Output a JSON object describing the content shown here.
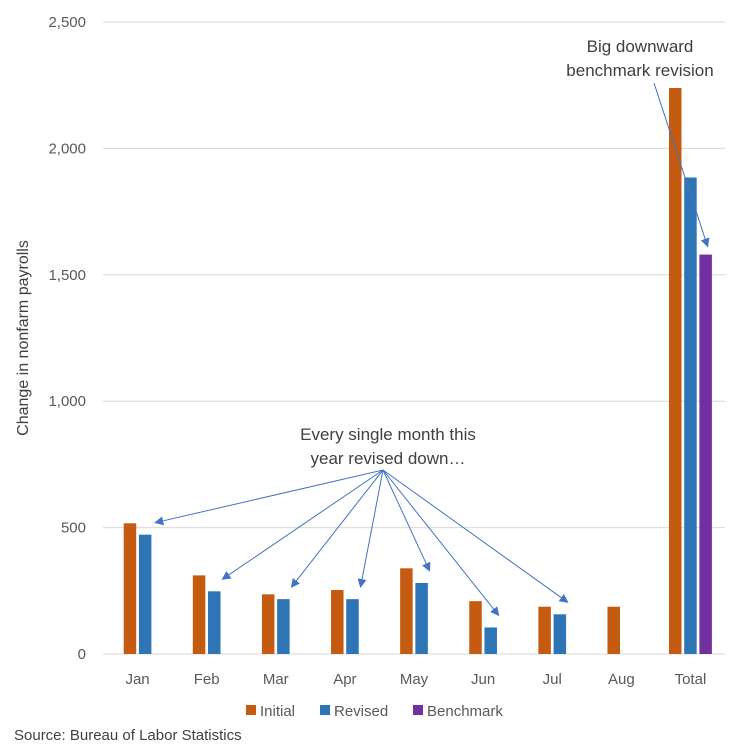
{
  "chart_data": {
    "type": "bar",
    "ylabel": "Change in nonfarm payrolls",
    "categories": [
      "Jan",
      "Feb",
      "Mar",
      "Apr",
      "May",
      "Jun",
      "Jul",
      "Aug",
      "Total"
    ],
    "ylim": [
      0,
      2500
    ],
    "yticks": [
      0,
      500,
      1000,
      1500,
      2000,
      2500
    ],
    "ytick_labels": [
      "0",
      "500",
      "1,000",
      "1,500",
      "2,000",
      "2,500"
    ],
    "grid": true,
    "legend_position": "bottom",
    "series": [
      {
        "name": "Initial",
        "color": "#c55a11",
        "values": [
          517,
          311,
          236,
          253,
          339,
          209,
          187,
          187,
          2239
        ]
      },
      {
        "name": "Revised",
        "color": "#2e75b6",
        "values": [
          472,
          248,
          217,
          217,
          281,
          105,
          157,
          null,
          1885
        ]
      },
      {
        "name": "Benchmark",
        "color": "#7030a0",
        "values": [
          null,
          null,
          null,
          null,
          null,
          null,
          null,
          null,
          1580
        ]
      }
    ],
    "annotations": [
      {
        "text_lines": [
          "Every single month this",
          "year revised down…"
        ],
        "targets": [
          "Jan",
          "Feb",
          "Mar",
          "Apr",
          "May",
          "Jun",
          "Jul"
        ]
      },
      {
        "text_lines": [
          "Big downward",
          "benchmark revision"
        ],
        "targets": [
          "Total"
        ]
      }
    ],
    "source": "Source: Bureau of Labor Statistics"
  }
}
